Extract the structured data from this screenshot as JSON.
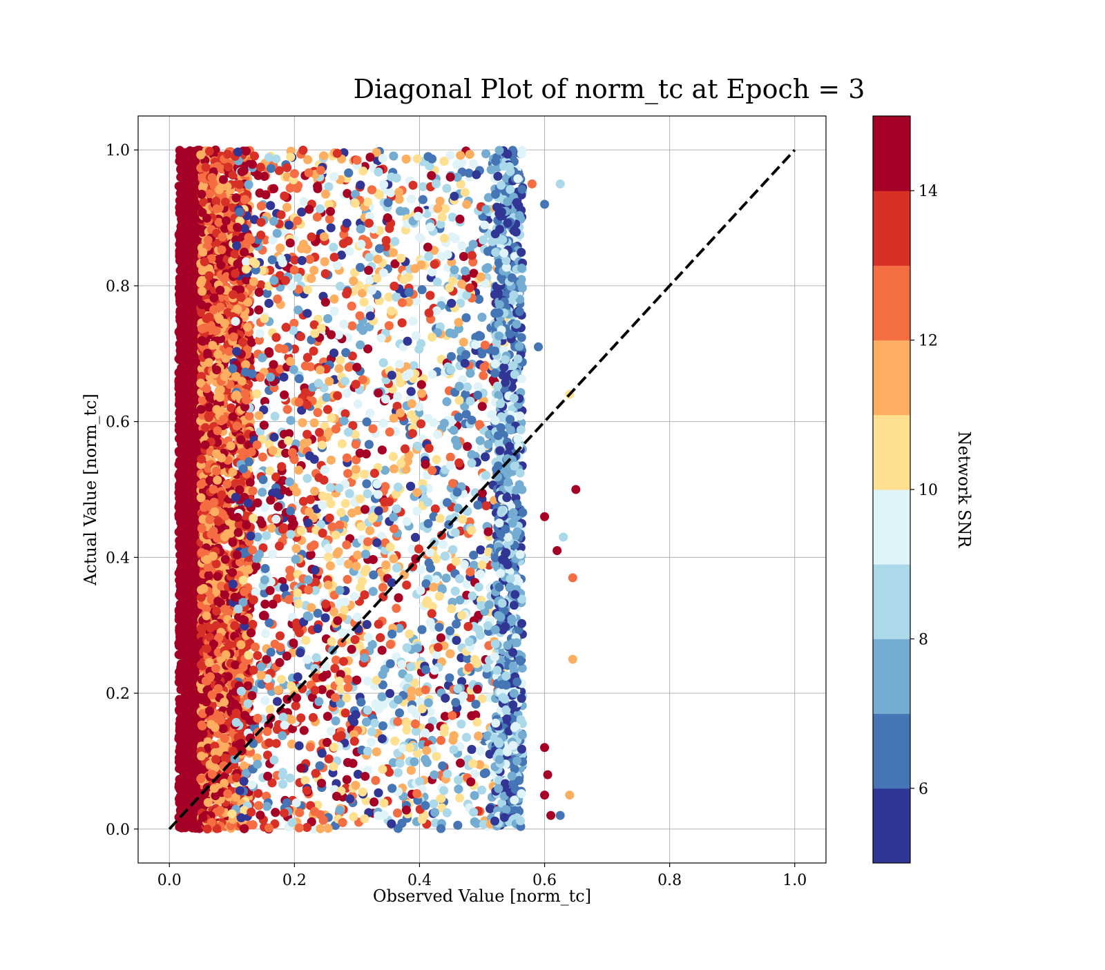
{
  "chart_data": {
    "type": "scatter",
    "title": "Diagonal Plot of norm_tc at Epoch = 3",
    "xlabel": "Observed Value [norm_tc]",
    "ylabel": "Actual Value [norm_tc]",
    "xlim": [
      -0.05,
      1.05
    ],
    "ylim": [
      -0.05,
      1.05
    ],
    "xticks": [
      "0.0",
      "0.2",
      "0.4",
      "0.6",
      "0.8",
      "1.0"
    ],
    "yticks": [
      "0.0",
      "0.2",
      "0.4",
      "0.6",
      "0.8",
      "1.0"
    ],
    "grid": true,
    "reference_line": {
      "x": [
        0,
        1
      ],
      "y": [
        0,
        1
      ],
      "style": "dashed",
      "color": "#000000"
    },
    "colorbar": {
      "label": "Network SNR",
      "range": [
        5,
        15
      ],
      "ticks": [
        "6",
        "8",
        "10",
        "12",
        "14"
      ],
      "colors": [
        "#313695",
        "#4575b4",
        "#74add1",
        "#abd9e9",
        "#e0f3f8",
        "#fee090",
        "#fdae61",
        "#f46d43",
        "#d73027",
        "#a50026"
      ]
    },
    "series": [
      {
        "description_points": [
          {
            "x": 0.03,
            "y": 0.5,
            "snr": 15
          },
          {
            "x": 0.58,
            "y": 0.95,
            "snr": 12
          },
          {
            "x": 0.625,
            "y": 0.95,
            "snr": 8
          },
          {
            "x": 0.6,
            "y": 0.92,
            "snr": 6
          },
          {
            "x": 0.65,
            "y": 0.5,
            "snr": 14
          },
          {
            "x": 0.645,
            "y": 0.37,
            "snr": 12
          },
          {
            "x": 0.645,
            "y": 0.25,
            "snr": 11
          },
          {
            "x": 0.62,
            "y": 0.41,
            "snr": 15
          },
          {
            "x": 0.61,
            "y": 0.02,
            "snr": 15
          },
          {
            "x": 0.625,
            "y": 0.02,
            "snr": 6
          },
          {
            "x": 0.64,
            "y": 0.64,
            "snr": 10
          },
          {
            "x": 0.59,
            "y": 0.71,
            "snr": 6
          },
          {
            "x": 0.63,
            "y": 0.43,
            "snr": 8
          },
          {
            "x": 0.6,
            "y": 0.46,
            "snr": 15
          },
          {
            "x": 0.6,
            "y": 0.12,
            "snr": 15
          },
          {
            "x": 0.605,
            "y": 0.08,
            "snr": 14
          },
          {
            "x": 0.6,
            "y": 0.05,
            "snr": 14
          },
          {
            "x": 0.64,
            "y": 0.05,
            "snr": 11
          }
        ]
      }
    ]
  }
}
